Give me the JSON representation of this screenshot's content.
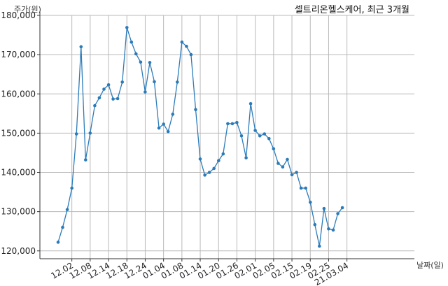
{
  "chart_data": {
    "type": "line",
    "title": "셀트리온헬스케어, 최근 3개월",
    "xlabel": "날짜(일)",
    "ylabel": "주가(원)",
    "ylim": [
      118000,
      180000
    ],
    "yticks": [
      120000,
      130000,
      140000,
      150000,
      160000,
      170000,
      180000
    ],
    "ytick_labels": [
      "120,000",
      "130,000",
      "140,000",
      "150,000",
      "160,000",
      "170,000",
      "180,000"
    ],
    "xtick_labels": [
      "12.02",
      "12.08",
      "12.14",
      "12.18",
      "12.24",
      "01.04",
      "01.08",
      "01.14",
      "01.20",
      "01.26",
      "02.01",
      "02.05",
      "02.15",
      "02.19",
      "02.25",
      "21.03.04"
    ],
    "xtick_index": [
      3,
      7,
      11,
      15,
      19,
      23,
      27,
      31,
      35,
      39,
      43,
      47,
      51,
      55,
      59,
      63
    ],
    "grid": true,
    "line_color": "#2b7bb9",
    "series": [
      {
        "values": [
          122200,
          126000,
          130500,
          136000,
          149800,
          172000,
          143200,
          150000,
          157000,
          159000,
          161200,
          162300,
          158700,
          158800,
          163000,
          176900,
          173200,
          170200,
          168100,
          160500,
          168000,
          163100,
          151300,
          152300,
          150400,
          154800,
          163000,
          173200,
          172100,
          170000,
          156000,
          143400,
          139300,
          140000,
          141000,
          143000,
          144700,
          152400,
          152400,
          152700,
          149300,
          143700,
          157500,
          150700,
          149300,
          149800,
          148600,
          146000,
          142300,
          141400,
          143300,
          139400,
          140000,
          136000,
          136000,
          132400,
          126700,
          121200,
          130800,
          125600,
          125300,
          129500,
          131000
        ]
      }
    ]
  }
}
